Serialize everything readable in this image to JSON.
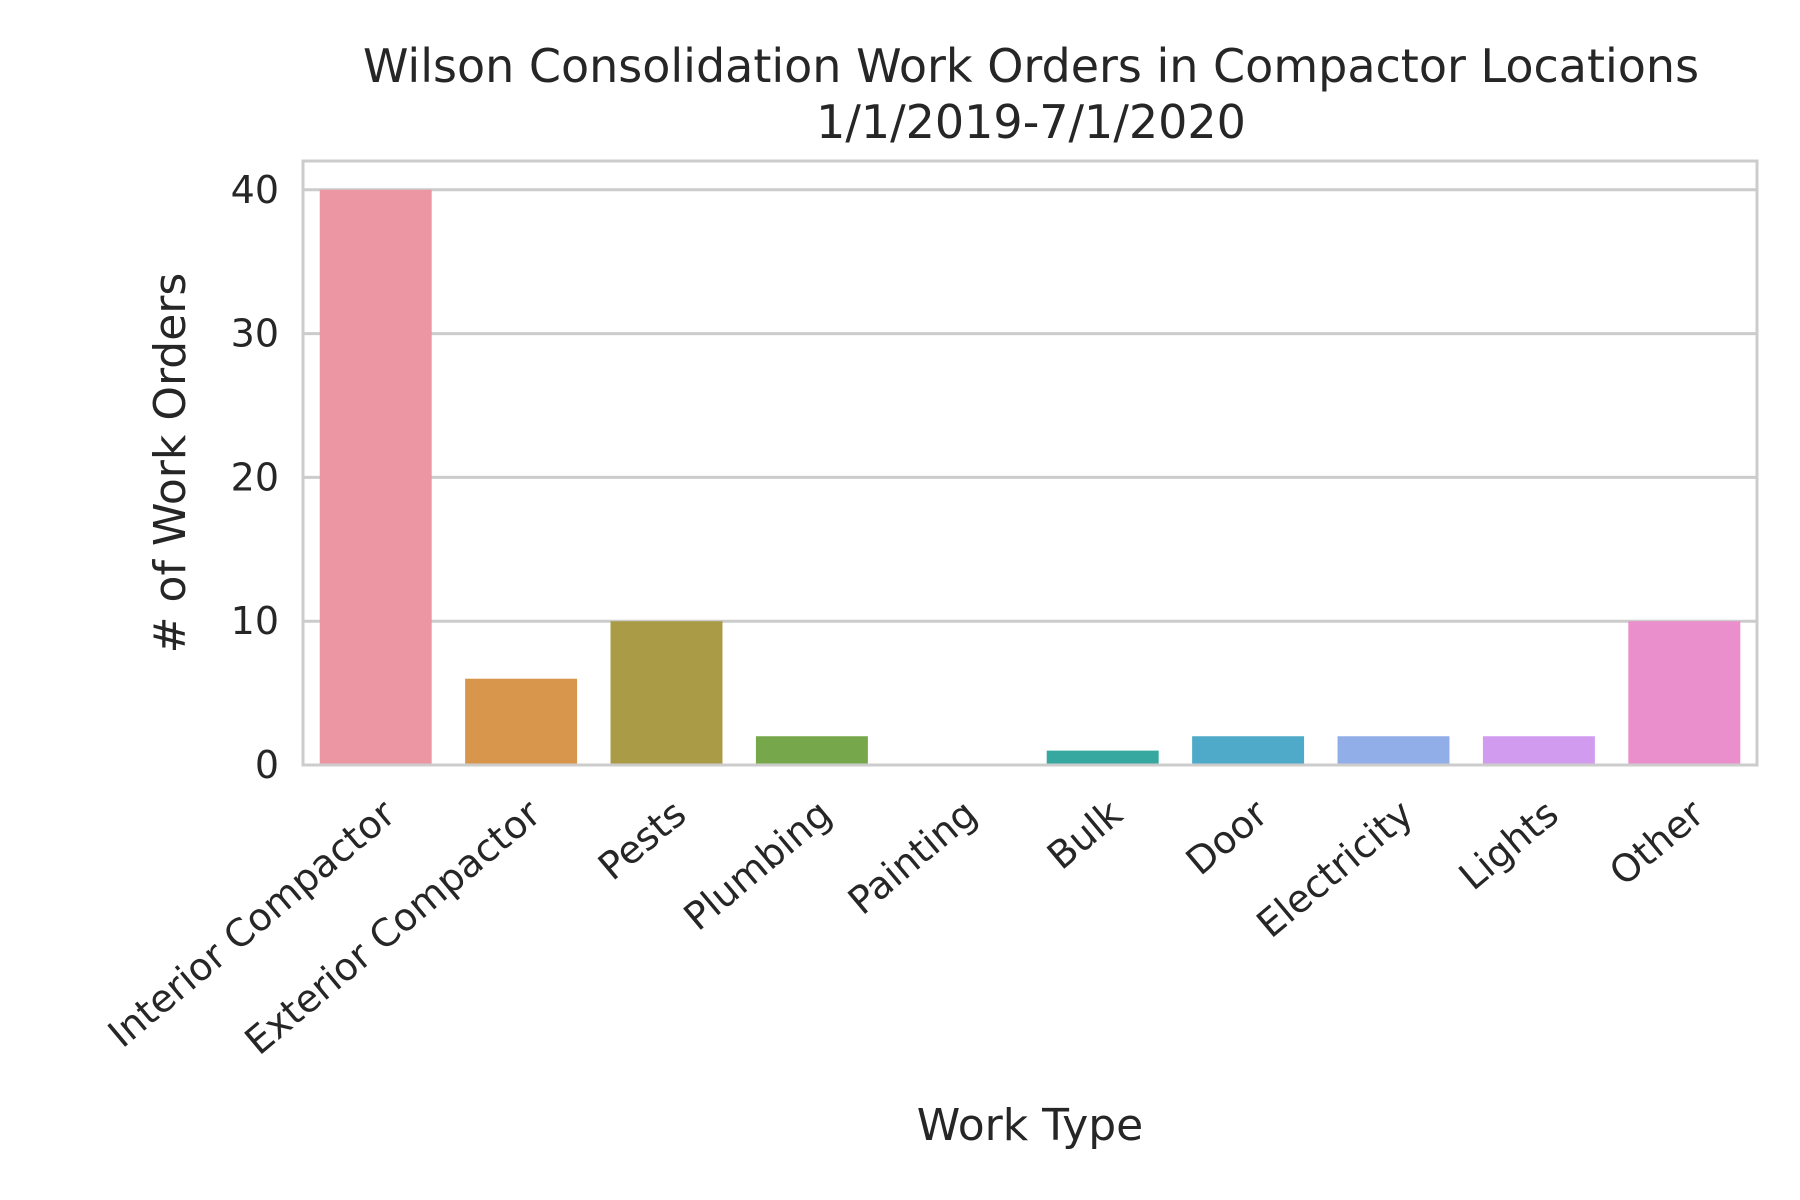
{
  "chart_data": {
    "type": "bar",
    "title": [
      "Wilson Consolidation Work Orders in Compactor Locations",
      "1/1/2019-7/1/2020"
    ],
    "xlabel": "Work Type",
    "ylabel": "# of Work Orders",
    "ylim": [
      0,
      42
    ],
    "yticks": [
      "0",
      "10",
      "20",
      "30",
      "40"
    ],
    "grid": "horizontal",
    "categories": [
      "Interior Compactor",
      "Exterior Compactor",
      "Pests",
      "Plumbing",
      "Painting",
      "Bulk",
      "Door",
      "Electricity",
      "Lights",
      "Other"
    ],
    "values": [
      40,
      6,
      10,
      2,
      0,
      1,
      2,
      2,
      2,
      10
    ],
    "colors": [
      "#eb96a2",
      "#d8964d",
      "#aa9c47",
      "#77a74b",
      "#4fae8f",
      "#36a8a0",
      "#4eaac8",
      "#92aee9",
      "#d19cef",
      "#ea8fcb"
    ]
  }
}
